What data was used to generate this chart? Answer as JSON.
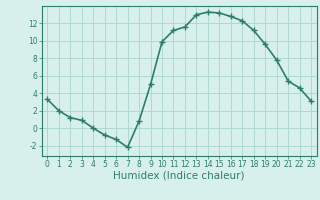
{
  "x": [
    0,
    1,
    2,
    3,
    4,
    5,
    6,
    7,
    8,
    9,
    10,
    11,
    12,
    13,
    14,
    15,
    16,
    17,
    18,
    19,
    20,
    21,
    22,
    23
  ],
  "y": [
    3.3,
    2.0,
    1.2,
    0.9,
    0.0,
    -0.8,
    -1.3,
    -2.2,
    0.8,
    5.0,
    9.9,
    11.2,
    11.6,
    13.0,
    13.3,
    13.2,
    12.8,
    12.3,
    11.2,
    9.6,
    7.8,
    5.4,
    4.6,
    3.1
  ],
  "line_color": "#2d7d6e",
  "marker": "+",
  "marker_size": 4,
  "linewidth": 1.2,
  "xlabel": "Humidex (Indice chaleur)",
  "xlim": [
    -0.5,
    23.5
  ],
  "ylim": [
    -3.2,
    14.0
  ],
  "yticks": [
    -2,
    0,
    2,
    4,
    6,
    8,
    10,
    12
  ],
  "xticks": [
    0,
    1,
    2,
    3,
    4,
    5,
    6,
    7,
    8,
    9,
    10,
    11,
    12,
    13,
    14,
    15,
    16,
    17,
    18,
    19,
    20,
    21,
    22,
    23
  ],
  "grid_color": "#b0d8d0",
  "background_color": "#d8f0ec",
  "tick_label_fontsize": 5.5,
  "xlabel_fontsize": 7.5
}
